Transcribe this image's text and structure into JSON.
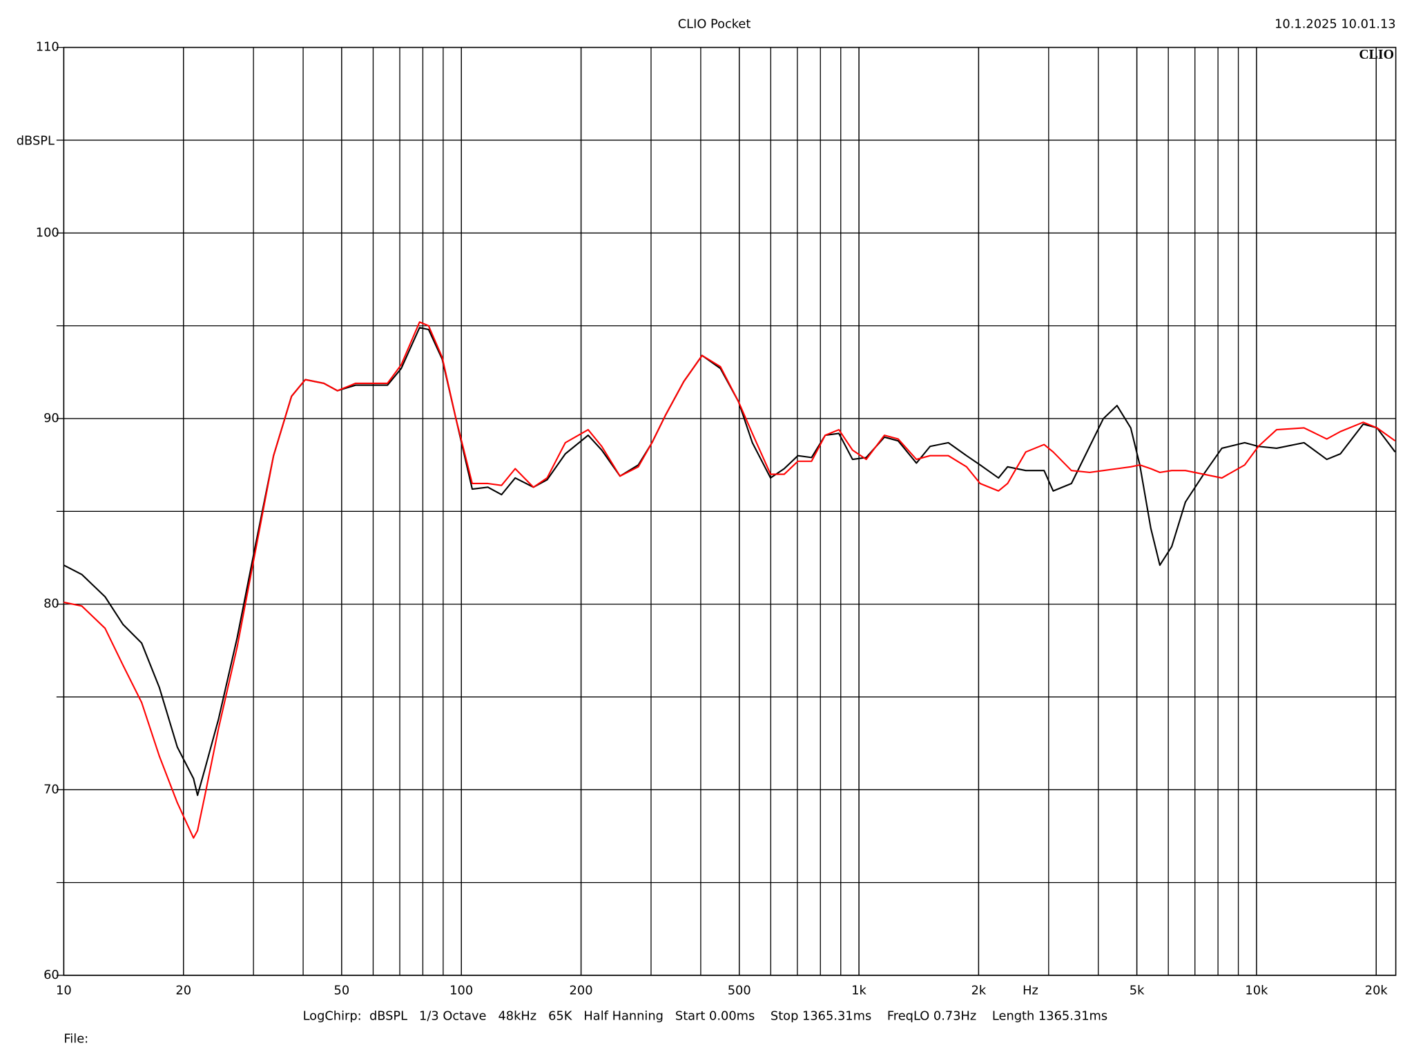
{
  "chart_data": {
    "type": "line",
    "title": "CLIO Pocket",
    "timestamp": "10.1.2025 10.01.13",
    "logo": "CLIO",
    "y_label": "dBSPL",
    "x_label": "Hz",
    "footer": "LogChirp:  dBSPL   1/3 Octave   48kHz   65K   Half Hanning   Start 0.00ms    Stop 1365.31ms    FreqLO 0.73Hz    Length 1365.31ms",
    "file_label": "File:",
    "log_x": true,
    "grid": true,
    "xlim": [
      10,
      22400
    ],
    "ylim": [
      60,
      110
    ],
    "xticks": [
      10,
      20,
      50,
      100,
      200,
      500,
      {
        "value": 1000,
        "label": "1k"
      },
      {
        "value": 2000,
        "label": "2k"
      },
      {
        "value": 5000,
        "label": "5k"
      },
      {
        "value": 10000,
        "label": "10k"
      },
      {
        "value": 20000,
        "label": "20k"
      }
    ],
    "yticks": [
      60,
      70,
      80,
      90,
      100,
      110
    ],
    "x": [
      10,
      11.1,
      12.7,
      14.1,
      15.7,
      17.4,
      19.3,
      21.2,
      21.7,
      22.7,
      24.5,
      27.3,
      30.3,
      33.7,
      37.4,
      40.5,
      45.1,
      48.8,
      54.2,
      60.2,
      65.2,
      70.6,
      78.5,
      82.7,
      89.5,
      96.9,
      106.5,
      116.6,
      126.2,
      136.6,
      151.8,
      164.3,
      182.6,
      208.4,
      225.5,
      250.6,
      278.6,
      301.6,
      326.5,
      362.7,
      403.2,
      448.2,
      498.1,
      539.4,
      599.3,
      648.7,
      702.2,
      760,
      822.6,
      890.4,
      963.6,
      1043,
      1159,
      1255,
      1395,
      1510,
      1678,
      1865,
      2018,
      2244,
      2365,
      2628,
      2922,
      3080,
      3423,
      3805,
      4119,
      4458,
      4826,
      5087,
      5420,
      5713,
      6119,
      6624,
      7362,
      8181,
      9337,
      10107,
      11233,
      13164,
      15021,
      16255,
      18551,
      20084,
      22315
    ],
    "series": [
      {
        "color": "#000000",
        "values": [
          82.1,
          81.6,
          80.4,
          78.9,
          77.9,
          75.5,
          72.3,
          70.6,
          69.7,
          71.2,
          73.8,
          78.2,
          83.1,
          88.0,
          91.2,
          92.1,
          91.9,
          91.5,
          91.8,
          91.8,
          91.8,
          92.7,
          94.9,
          94.8,
          93.2,
          90.0,
          86.2,
          86.3,
          85.9,
          86.8,
          86.3,
          86.7,
          88.1,
          89.1,
          88.3,
          86.9,
          87.5,
          88.7,
          90.2,
          92.0,
          93.4,
          92.7,
          90.9,
          88.7,
          86.8,
          87.3,
          88.0,
          87.9,
          89.1,
          89.2,
          87.8,
          87.9,
          89.0,
          88.8,
          87.6,
          88.5,
          88.7,
          88.0,
          87.5,
          86.8,
          87.4,
          87.2,
          87.2,
          86.1,
          86.5,
          88.5,
          90.0,
          90.7,
          89.5,
          87.5,
          84.1,
          82.1,
          83.1,
          85.5,
          87.0,
          88.4,
          88.7,
          88.5,
          88.4,
          88.7,
          87.8,
          88.1,
          89.7,
          89.5,
          88.2
        ]
      },
      {
        "color": "#ff0000",
        "values": [
          80.1,
          79.9,
          78.7,
          76.7,
          74.7,
          71.8,
          69.3,
          67.4,
          67.8,
          69.8,
          73.3,
          77.7,
          82.8,
          88.0,
          91.2,
          92.1,
          91.9,
          91.5,
          91.9,
          91.9,
          91.9,
          92.9,
          95.2,
          95.0,
          93.3,
          90.0,
          86.5,
          86.5,
          86.4,
          87.3,
          86.3,
          86.8,
          88.7,
          89.4,
          88.5,
          86.9,
          87.4,
          88.7,
          90.2,
          92.0,
          93.4,
          92.8,
          90.9,
          89.2,
          87.0,
          87.0,
          87.7,
          87.7,
          89.1,
          89.4,
          88.3,
          87.8,
          89.1,
          88.9,
          87.8,
          88.0,
          88.0,
          87.4,
          86.5,
          86.1,
          86.5,
          88.2,
          88.6,
          88.2,
          87.2,
          87.1,
          87.2,
          87.3,
          87.4,
          87.5,
          87.3,
          87.1,
          87.2,
          87.2,
          87.0,
          86.8,
          87.5,
          88.5,
          89.4,
          89.5,
          88.9,
          89.3,
          89.8,
          89.5,
          88.8
        ]
      }
    ]
  }
}
